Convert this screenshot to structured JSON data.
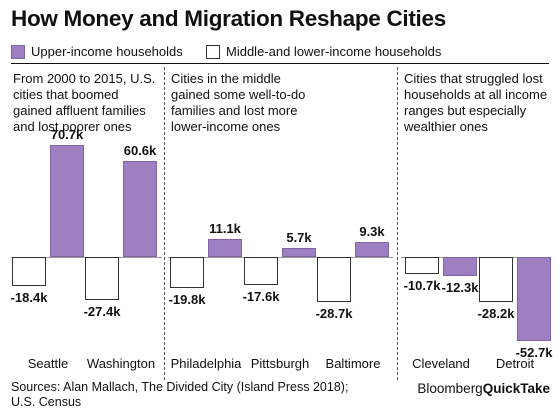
{
  "title": "How Money and Migration Reshape Cities",
  "legend": {
    "upper": "Upper-income households",
    "lower": "Middle-and lower-income households"
  },
  "panels": [
    {
      "description": [
        "From 2000 to 2015, U.S.",
        "cities that boomed",
        "gained affluent families",
        "and lost poorer ones"
      ]
    },
    {
      "description": [
        "Cities in the middle",
        "gained some well-to-do",
        "families and lost more",
        "lower-income ones"
      ]
    },
    {
      "description": [
        "Cities that struggled lost",
        "households at all income",
        "ranges but especially",
        "wealthier ones"
      ]
    }
  ],
  "chart_data": {
    "type": "bar",
    "title": "How Money and Migration Reshape Cities",
    "unit": "households (thousands)",
    "categories": [
      "Seattle",
      "Washington",
      "Philadelphia",
      "Pittsburgh",
      "Baltimore",
      "Cleveland",
      "Detroit"
    ],
    "series": [
      {
        "name": "Middle-and lower-income households",
        "values": [
          -18.4,
          -27.4,
          -19.8,
          -17.6,
          -28.7,
          -10.7,
          -28.2
        ],
        "labels": [
          "-18.4k",
          "-27.4k",
          "-19.8k",
          "-17.6k",
          "-28.7k",
          "-10.7k",
          "-28.2k"
        ]
      },
      {
        "name": "Upper-income households",
        "values": [
          70.7,
          60.6,
          11.1,
          5.7,
          9.3,
          -12.3,
          -52.7
        ],
        "labels": [
          "70.7k",
          "60.6k",
          "11.1k",
          "5.7k",
          "9.3k",
          "-12.3k",
          "-52.7k"
        ]
      }
    ],
    "grid": false,
    "legend": "top-left"
  },
  "source": [
    "Sources: Alan Mallach, The Divided City (Island Press 2018);",
    "U.S. Census"
  ],
  "brand": {
    "part1": "Bloomberg",
    "part2": "QuickTake"
  },
  "colors": {
    "upper": "#9e80c2",
    "lower": "#ffffff",
    "text": "#111111"
  }
}
